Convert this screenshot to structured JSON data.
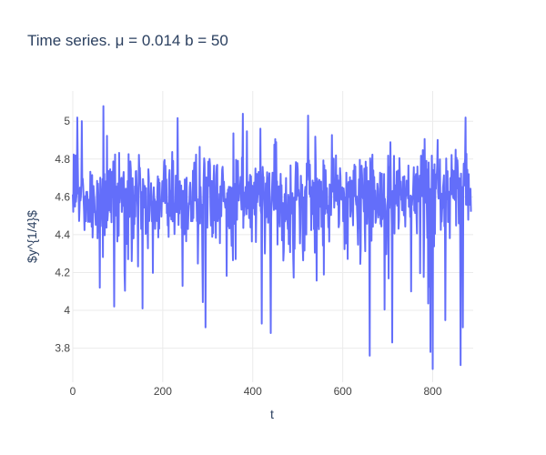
{
  "chart_data": {
    "type": "line",
    "title": "Time series. μ = 0.014 b = 50",
    "xlabel": "t",
    "ylabel": "$y^{1/4}$",
    "xlim": [
      0,
      890
    ],
    "ylim": [
      3.62,
      5.16
    ],
    "x_ticks": [
      0,
      200,
      400,
      600,
      800
    ],
    "y_ticks": [
      3.8,
      4,
      4.2,
      4.4,
      4.6,
      4.8,
      5
    ],
    "grid": true,
    "legend": "none",
    "line_color": "#636efa",
    "series": [
      {
        "x": [
          0,
          25,
          50,
          75,
          100,
          125,
          150,
          175,
          200,
          225,
          250,
          275,
          300,
          325,
          350,
          375,
          400,
          425,
          450,
          475,
          500,
          525,
          550,
          575,
          600,
          625,
          650,
          675,
          700,
          725,
          750,
          775,
          800,
          825,
          850,
          875,
          885
        ],
        "values": [
          4.65,
          4.6,
          4.55,
          4.62,
          4.6,
          4.58,
          4.63,
          4.55,
          4.6,
          4.62,
          4.58,
          4.6,
          4.57,
          4.61,
          4.6,
          4.63,
          4.58,
          4.6,
          4.62,
          4.57,
          4.6,
          4.61,
          4.59,
          4.6,
          4.62,
          4.58,
          4.6,
          4.57,
          4.62,
          4.6,
          4.58,
          4.61,
          4.6,
          4.57,
          4.6,
          4.62,
          4.58
        ],
        "sample_points": [
          {
            "x": 10,
            "y": 5.02
          },
          {
            "x": 60,
            "y": 4.12
          },
          {
            "x": 68,
            "y": 5.08
          },
          {
            "x": 92,
            "y": 4.02
          },
          {
            "x": 155,
            "y": 4.01
          },
          {
            "x": 295,
            "y": 3.91
          },
          {
            "x": 378,
            "y": 5.04
          },
          {
            "x": 420,
            "y": 3.93
          },
          {
            "x": 440,
            "y": 3.88
          },
          {
            "x": 660,
            "y": 3.76
          },
          {
            "x": 710,
            "y": 3.83
          },
          {
            "x": 795,
            "y": 3.78
          },
          {
            "x": 800,
            "y": 3.69
          },
          {
            "x": 862,
            "y": 3.71
          },
          {
            "x": 867,
            "y": 3.91
          },
          {
            "x": 873,
            "y": 5.02
          }
        ]
      }
    ]
  }
}
